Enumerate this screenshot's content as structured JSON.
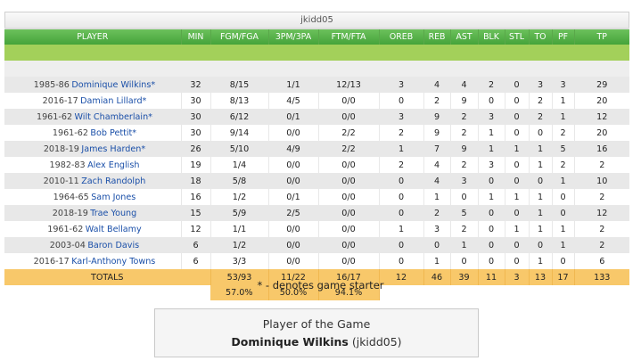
{
  "title": "jkidd05",
  "columns": [
    "PLAYER",
    "MIN",
    "FGM/FGA",
    "3PM/3PA",
    "FTM/FTA",
    "OREB",
    "REB",
    "AST",
    "BLK",
    "STL",
    "TO",
    "PF",
    "TP"
  ],
  "players": [
    {
      "season": "1985-86",
      "name": "Dominique Wilkins*",
      "min": "32",
      "fg": "8/15",
      "tp3": "1/1",
      "ft": "12/13",
      "oreb": "3",
      "reb": "4",
      "ast": "4",
      "blk": "2",
      "stl": "0",
      "to": "3",
      "pf": "3",
      "pts": "29"
    },
    {
      "season": "2016-17",
      "name": "Damian Lillard*",
      "min": "30",
      "fg": "8/13",
      "tp3": "4/5",
      "ft": "0/0",
      "oreb": "0",
      "reb": "2",
      "ast": "9",
      "blk": "0",
      "stl": "0",
      "to": "2",
      "pf": "1",
      "pts": "20"
    },
    {
      "season": "1961-62",
      "name": "Wilt Chamberlain*",
      "min": "30",
      "fg": "6/12",
      "tp3": "0/1",
      "ft": "0/0",
      "oreb": "3",
      "reb": "9",
      "ast": "2",
      "blk": "3",
      "stl": "0",
      "to": "2",
      "pf": "1",
      "pts": "12"
    },
    {
      "season": "1961-62",
      "name": "Bob Pettit*",
      "min": "30",
      "fg": "9/14",
      "tp3": "0/0",
      "ft": "2/2",
      "oreb": "2",
      "reb": "9",
      "ast": "2",
      "blk": "1",
      "stl": "0",
      "to": "0",
      "pf": "2",
      "pts": "20"
    },
    {
      "season": "2018-19",
      "name": "James Harden*",
      "min": "26",
      "fg": "5/10",
      "tp3": "4/9",
      "ft": "2/2",
      "oreb": "1",
      "reb": "7",
      "ast": "9",
      "blk": "1",
      "stl": "1",
      "to": "1",
      "pf": "5",
      "pts": "16"
    },
    {
      "season": "1982-83",
      "name": "Alex English",
      "min": "19",
      "fg": "1/4",
      "tp3": "0/0",
      "ft": "0/0",
      "oreb": "2",
      "reb": "4",
      "ast": "2",
      "blk": "3",
      "stl": "0",
      "to": "1",
      "pf": "2",
      "pts": "2"
    },
    {
      "season": "2010-11",
      "name": "Zach Randolph",
      "min": "18",
      "fg": "5/8",
      "tp3": "0/0",
      "ft": "0/0",
      "oreb": "0",
      "reb": "4",
      "ast": "3",
      "blk": "0",
      "stl": "0",
      "to": "0",
      "pf": "1",
      "pts": "10"
    },
    {
      "season": "1964-65",
      "name": "Sam Jones",
      "min": "16",
      "fg": "1/2",
      "tp3": "0/1",
      "ft": "0/0",
      "oreb": "0",
      "reb": "1",
      "ast": "0",
      "blk": "1",
      "stl": "1",
      "to": "1",
      "pf": "0",
      "pts": "2"
    },
    {
      "season": "2018-19",
      "name": "Trae Young",
      "min": "15",
      "fg": "5/9",
      "tp3": "2/5",
      "ft": "0/0",
      "oreb": "0",
      "reb": "2",
      "ast": "5",
      "blk": "0",
      "stl": "0",
      "to": "1",
      "pf": "0",
      "pts": "12"
    },
    {
      "season": "1961-62",
      "name": "Walt Bellamy",
      "min": "12",
      "fg": "1/1",
      "tp3": "0/0",
      "ft": "0/0",
      "oreb": "1",
      "reb": "3",
      "ast": "2",
      "blk": "0",
      "stl": "1",
      "to": "1",
      "pf": "1",
      "pts": "2"
    },
    {
      "season": "2003-04",
      "name": "Baron Davis",
      "min": "6",
      "fg": "1/2",
      "tp3": "0/0",
      "ft": "0/0",
      "oreb": "0",
      "reb": "0",
      "ast": "1",
      "blk": "0",
      "stl": "0",
      "to": "0",
      "pf": "1",
      "pts": "2"
    },
    {
      "season": "2016-17",
      "name": "Karl-Anthony Towns",
      "min": "6",
      "fg": "3/3",
      "tp3": "0/0",
      "ft": "0/0",
      "oreb": "0",
      "reb": "1",
      "ast": "0",
      "blk": "0",
      "stl": "0",
      "to": "1",
      "pf": "0",
      "pts": "6"
    }
  ],
  "totals": {
    "label": "TOTALS",
    "fg": "53/93",
    "tp3": "11/22",
    "ft": "16/17",
    "oreb": "12",
    "reb": "46",
    "ast": "39",
    "blk": "11",
    "stl": "3",
    "to": "13",
    "pf": "17",
    "pts": "133"
  },
  "percentages": {
    "fg": "57.0%",
    "tp3": "50.0%",
    "ft": "94.1%"
  },
  "starter_note": "* - denotes game starter",
  "potg": {
    "title": "Player of the Game",
    "player": "Dominique Wilkins",
    "user": "(jkidd05)"
  },
  "colors": {
    "header_green": "#4caf3f",
    "totals_orange": "#f8c86a",
    "link_blue": "#1a4fa8"
  }
}
